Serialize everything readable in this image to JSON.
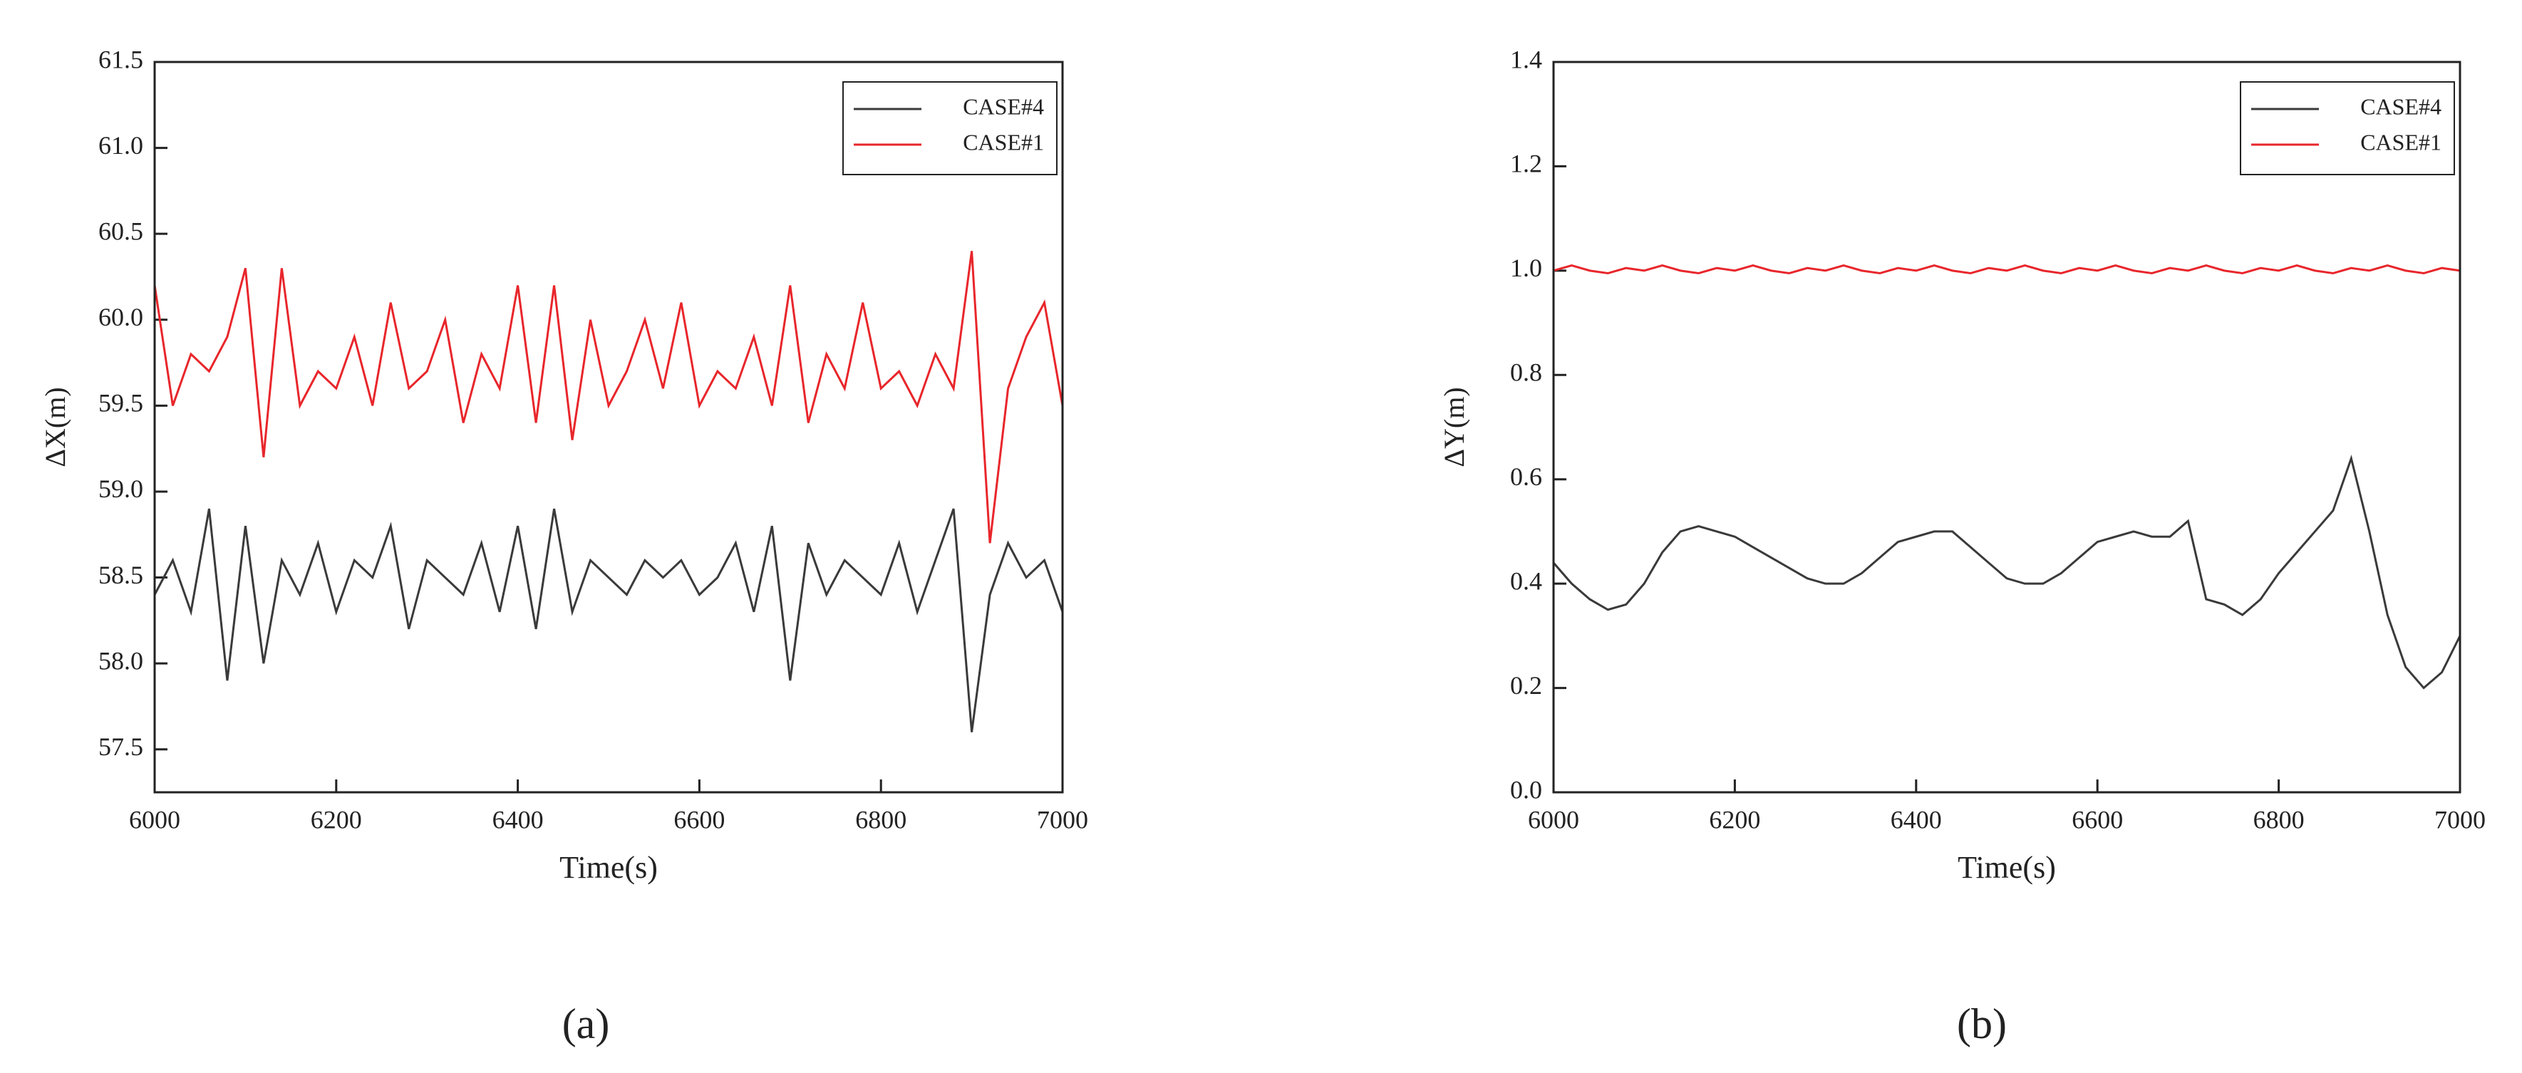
{
  "chart_data": [
    {
      "type": "line",
      "caption": "(a)",
      "x_label": "Time(s)",
      "y_label": "ΔX(m)",
      "x": [
        6000,
        6020,
        6040,
        6060,
        6080,
        6100,
        6120,
        6140,
        6160,
        6180,
        6200,
        6220,
        6240,
        6260,
        6280,
        6300,
        6320,
        6340,
        6360,
        6380,
        6400,
        6420,
        6440,
        6460,
        6480,
        6500,
        6520,
        6540,
        6560,
        6580,
        6600,
        6620,
        6640,
        6660,
        6680,
        6700,
        6720,
        6740,
        6760,
        6780,
        6800,
        6820,
        6840,
        6860,
        6880,
        6900,
        6920,
        6940,
        6960,
        6980,
        7000
      ],
      "series": [
        {
          "name": "CASE#4",
          "color": "#3a3a3a",
          "values": [
            58.4,
            58.6,
            58.3,
            58.9,
            57.9,
            58.8,
            58.0,
            58.6,
            58.4,
            58.7,
            58.3,
            58.6,
            58.5,
            58.8,
            58.2,
            58.6,
            58.5,
            58.4,
            58.7,
            58.3,
            58.8,
            58.2,
            58.9,
            58.3,
            58.6,
            58.5,
            58.4,
            58.6,
            58.5,
            58.6,
            58.4,
            58.5,
            58.7,
            58.3,
            58.8,
            57.9,
            58.7,
            58.4,
            58.6,
            58.5,
            58.4,
            58.7,
            58.3,
            58.6,
            58.9,
            57.6,
            58.4,
            58.7,
            58.5,
            58.6,
            58.3
          ]
        },
        {
          "name": "CASE#1",
          "color": "#e8262b",
          "values": [
            60.2,
            59.5,
            59.8,
            59.7,
            59.9,
            60.3,
            59.2,
            60.3,
            59.5,
            59.7,
            59.6,
            59.9,
            59.5,
            60.1,
            59.6,
            59.7,
            60.0,
            59.4,
            59.8,
            59.6,
            60.2,
            59.4,
            60.2,
            59.3,
            60.0,
            59.5,
            59.7,
            60.0,
            59.6,
            60.1,
            59.5,
            59.7,
            59.6,
            59.9,
            59.5,
            60.2,
            59.4,
            59.8,
            59.6,
            60.1,
            59.6,
            59.7,
            59.5,
            59.8,
            59.6,
            60.4,
            58.7,
            59.6,
            59.9,
            60.1,
            59.5
          ]
        }
      ],
      "xlim": [
        6000,
        7000
      ],
      "xticks": [
        6000,
        6200,
        6400,
        6600,
        6800,
        7000
      ],
      "ylim": [
        57.25,
        61.5
      ],
      "yticks": [
        57.5,
        {
          "value": 58,
          "label": "58.0"
        },
        58.5,
        {
          "value": 59,
          "label": "59.0"
        },
        59.5,
        {
          "value": 60,
          "label": "60.0"
        },
        60.5,
        {
          "value": 61,
          "label": "61.0"
        },
        61.5
      ],
      "legend": "upper right"
    },
    {
      "type": "line",
      "caption": "(b)",
      "x_label": "Time(s)",
      "y_label": "ΔY(m)",
      "x": [
        6000,
        6020,
        6040,
        6060,
        6080,
        6100,
        6120,
        6140,
        6160,
        6180,
        6200,
        6220,
        6240,
        6260,
        6280,
        6300,
        6320,
        6340,
        6360,
        6380,
        6400,
        6420,
        6440,
        6460,
        6480,
        6500,
        6520,
        6540,
        6560,
        6580,
        6600,
        6620,
        6640,
        6660,
        6680,
        6700,
        6720,
        6740,
        6760,
        6780,
        6800,
        6820,
        6840,
        6860,
        6880,
        6900,
        6920,
        6940,
        6960,
        6980,
        7000
      ],
      "series": [
        {
          "name": "CASE#4",
          "color": "#3a3a3a",
          "values": [
            0.44,
            0.4,
            0.37,
            0.35,
            0.36,
            0.4,
            0.46,
            0.5,
            0.51,
            0.5,
            0.49,
            0.47,
            0.45,
            0.43,
            0.41,
            0.4,
            0.4,
            0.42,
            0.45,
            0.48,
            0.49,
            0.5,
            0.5,
            0.47,
            0.44,
            0.41,
            0.4,
            0.4,
            0.42,
            0.45,
            0.48,
            0.49,
            0.5,
            0.49,
            0.49,
            0.52,
            0.37,
            0.36,
            0.34,
            0.37,
            0.42,
            0.46,
            0.5,
            0.54,
            0.64,
            0.5,
            0.34,
            0.24,
            0.2,
            0.23,
            0.3
          ]
        },
        {
          "name": "CASE#1",
          "color": "#e8262b",
          "values": [
            1.0,
            1.01,
            1.0,
            0.995,
            1.005,
            1.0,
            1.01,
            1.0,
            0.995,
            1.005,
            1.0,
            1.01,
            1.0,
            0.995,
            1.005,
            1.0,
            1.01,
            1.0,
            0.995,
            1.005,
            1.0,
            1.01,
            1.0,
            0.995,
            1.005,
            1.0,
            1.01,
            1.0,
            0.995,
            1.005,
            1.0,
            1.01,
            1.0,
            0.995,
            1.005,
            1.0,
            1.01,
            1.0,
            0.995,
            1.005,
            1.0,
            1.01,
            1.0,
            0.995,
            1.005,
            1.0,
            1.01,
            1.0,
            0.995,
            1.005,
            1.0
          ]
        }
      ],
      "xlim": [
        6000,
        7000
      ],
      "xticks": [
        6000,
        6200,
        6400,
        6600,
        6800,
        7000
      ],
      "ylim": [
        0,
        1.4
      ],
      "yticks": [
        {
          "value": 0,
          "label": "0.0"
        },
        0.2,
        0.4,
        0.6,
        0.8,
        {
          "value": 1,
          "label": "1.0"
        },
        1.2,
        1.4
      ],
      "legend": "upper right"
    }
  ]
}
